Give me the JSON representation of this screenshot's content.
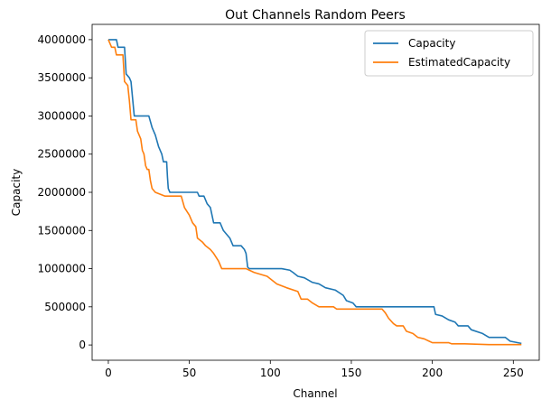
{
  "chart_data": {
    "type": "line",
    "title": "Out Channels Random Peers",
    "xlabel": "Channel",
    "ylabel": "Capacity",
    "xlim": [
      -10,
      266
    ],
    "ylim": [
      -200000,
      4200000
    ],
    "xticks": [
      0,
      50,
      100,
      150,
      200,
      250
    ],
    "yticks": [
      0,
      500000,
      1000000,
      1500000,
      2000000,
      2500000,
      3000000,
      3500000,
      4000000
    ],
    "xtick_labels": [
      "0",
      "50",
      "100",
      "150",
      "200",
      "250"
    ],
    "ytick_labels": [
      "0",
      "500000",
      "1000000",
      "1500000",
      "2000000",
      "2500000",
      "3000000",
      "3500000",
      "4000000"
    ],
    "grid": false,
    "legend": "top-right",
    "series": [
      {
        "name": "Capacity",
        "color": "#1f77b4",
        "points": [
          [
            0,
            4000000
          ],
          [
            5,
            4000000
          ],
          [
            6,
            3900000
          ],
          [
            10,
            3900000
          ],
          [
            11,
            3550000
          ],
          [
            13,
            3500000
          ],
          [
            14,
            3450000
          ],
          [
            16,
            3000000
          ],
          [
            25,
            3000000
          ],
          [
            27,
            2850000
          ],
          [
            29,
            2750000
          ],
          [
            31,
            2600000
          ],
          [
            33,
            2500000
          ],
          [
            34,
            2400000
          ],
          [
            36,
            2400000
          ],
          [
            36.5,
            2200000
          ],
          [
            37,
            2050000
          ],
          [
            38,
            2000000
          ],
          [
            55,
            2000000
          ],
          [
            56,
            1950000
          ],
          [
            59,
            1950000
          ],
          [
            61,
            1850000
          ],
          [
            63,
            1800000
          ],
          [
            65,
            1600000
          ],
          [
            69,
            1600000
          ],
          [
            71,
            1500000
          ],
          [
            73,
            1450000
          ],
          [
            75,
            1400000
          ],
          [
            77,
            1300000
          ],
          [
            82,
            1300000
          ],
          [
            84,
            1250000
          ],
          [
            85,
            1200000
          ],
          [
            86,
            1020000
          ],
          [
            87,
            1000000
          ],
          [
            107,
            1000000
          ],
          [
            112,
            980000
          ],
          [
            114,
            950000
          ],
          [
            117,
            900000
          ],
          [
            121,
            880000
          ],
          [
            126,
            820000
          ],
          [
            130,
            800000
          ],
          [
            134,
            750000
          ],
          [
            140,
            720000
          ],
          [
            145,
            650000
          ],
          [
            147,
            580000
          ],
          [
            151,
            550000
          ],
          [
            153,
            500000
          ],
          [
            201,
            500000
          ],
          [
            202,
            400000
          ],
          [
            206,
            380000
          ],
          [
            210,
            330000
          ],
          [
            214,
            300000
          ],
          [
            216,
            250000
          ],
          [
            222,
            250000
          ],
          [
            224,
            200000
          ],
          [
            231,
            150000
          ],
          [
            235,
            100000
          ],
          [
            245,
            100000
          ],
          [
            248,
            50000
          ],
          [
            255,
            20000
          ]
        ]
      },
      {
        "name": "EstimatedCapacity",
        "color": "#ff7f0e",
        "points": [
          [
            0,
            4000000
          ],
          [
            2,
            3900000
          ],
          [
            4,
            3900000
          ],
          [
            5,
            3800000
          ],
          [
            9,
            3800000
          ],
          [
            10,
            3450000
          ],
          [
            12,
            3400000
          ],
          [
            13,
            3200000
          ],
          [
            14,
            2950000
          ],
          [
            17,
            2950000
          ],
          [
            18,
            2800000
          ],
          [
            20,
            2700000
          ],
          [
            21,
            2550000
          ],
          [
            22,
            2500000
          ],
          [
            23,
            2350000
          ],
          [
            24,
            2300000
          ],
          [
            25,
            2300000
          ],
          [
            26,
            2150000
          ],
          [
            27,
            2050000
          ],
          [
            29,
            2000000
          ],
          [
            35,
            1950000
          ],
          [
            45,
            1950000
          ],
          [
            47,
            1800000
          ],
          [
            50,
            1700000
          ],
          [
            52,
            1600000
          ],
          [
            54,
            1550000
          ],
          [
            55,
            1400000
          ],
          [
            58,
            1350000
          ],
          [
            60,
            1300000
          ],
          [
            63,
            1250000
          ],
          [
            65,
            1200000
          ],
          [
            68,
            1100000
          ],
          [
            70,
            1000000
          ],
          [
            85,
            1000000
          ],
          [
            90,
            950000
          ],
          [
            98,
            900000
          ],
          [
            104,
            800000
          ],
          [
            110,
            750000
          ],
          [
            117,
            700000
          ],
          [
            119,
            600000
          ],
          [
            123,
            600000
          ],
          [
            126,
            550000
          ],
          [
            130,
            500000
          ],
          [
            139,
            500000
          ],
          [
            141,
            470000
          ],
          [
            169,
            470000
          ],
          [
            171,
            420000
          ],
          [
            173,
            350000
          ],
          [
            176,
            280000
          ],
          [
            178,
            250000
          ],
          [
            182,
            250000
          ],
          [
            184,
            180000
          ],
          [
            188,
            150000
          ],
          [
            191,
            100000
          ],
          [
            195,
            80000
          ],
          [
            198,
            50000
          ],
          [
            200,
            30000
          ],
          [
            210,
            30000
          ],
          [
            212,
            15000
          ],
          [
            220,
            15000
          ],
          [
            235,
            5000
          ],
          [
            255,
            5000
          ]
        ]
      }
    ]
  }
}
